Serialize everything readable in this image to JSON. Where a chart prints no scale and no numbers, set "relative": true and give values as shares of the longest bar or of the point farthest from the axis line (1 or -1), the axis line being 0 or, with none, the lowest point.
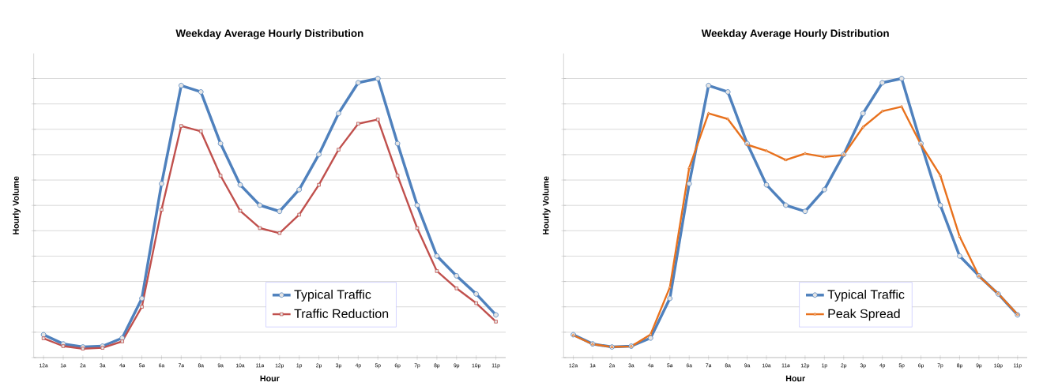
{
  "chart_data": [
    {
      "type": "line",
      "title": "Weekday Average Hourly Distribution",
      "xlabel": "Hour",
      "ylabel": "Hourly Volume",
      "relative": true,
      "grid": "y",
      "legend": "bottom",
      "line_style": "solid",
      "categories": [
        "12a",
        "1a",
        "2a",
        "3a",
        "4a",
        "5a",
        "6a",
        "7a",
        "8a",
        "9a",
        "10a",
        "11a",
        "12p",
        "1p",
        "2p",
        "3p",
        "4p",
        "5p",
        "6p",
        "7p",
        "8p",
        "9p",
        "10p",
        "11p"
      ],
      "series": [
        {
          "name": "Typical Traffic",
          "color": "#4f81bd",
          "marker": "circle",
          "values": [
            0.082,
            0.049,
            0.038,
            0.041,
            0.07,
            0.212,
            0.623,
            0.975,
            0.952,
            0.767,
            0.619,
            0.546,
            0.524,
            0.602,
            0.728,
            0.875,
            0.985,
            1,
            0.767,
            0.546,
            0.364,
            0.293,
            0.228,
            0.153
          ]
        },
        {
          "name": "Traffic Reduction",
          "color": "#c0504d",
          "marker": "square",
          "values": [
            0.069,
            0.041,
            0.032,
            0.035,
            0.058,
            0.182,
            0.53,
            0.83,
            0.811,
            0.652,
            0.526,
            0.464,
            0.446,
            0.512,
            0.619,
            0.745,
            0.838,
            0.853,
            0.652,
            0.464,
            0.31,
            0.248,
            0.195,
            0.129
          ]
        }
      ]
    },
    {
      "type": "line",
      "title": "Weekday Average Hourly Distribution",
      "xlabel": "Hour",
      "ylabel": "Hourly Volume",
      "relative": true,
      "grid": "y",
      "legend": "bottom",
      "line_style": "solid",
      "categories": [
        "12a",
        "1a",
        "2a",
        "3a",
        "4a",
        "5a",
        "6a",
        "7a",
        "8a",
        "9a",
        "10a",
        "11a",
        "12p",
        "1p",
        "2p",
        "3p",
        "4p",
        "5p",
        "6p",
        "7p",
        "8p",
        "9p",
        "10p",
        "11p"
      ],
      "series": [
        {
          "name": "Typical Traffic",
          "color": "#4f81bd",
          "marker": "circle",
          "values": [
            0.082,
            0.049,
            0.038,
            0.041,
            0.07,
            0.212,
            0.623,
            0.975,
            0.952,
            0.767,
            0.619,
            0.546,
            0.524,
            0.602,
            0.728,
            0.875,
            0.985,
            1,
            0.767,
            0.546,
            0.364,
            0.293,
            0.228,
            0.153
          ]
        },
        {
          "name": "Peak Spread",
          "color": "#e8711d",
          "marker": "triangle",
          "values": [
            0.08,
            0.048,
            0.038,
            0.04,
            0.083,
            0.252,
            0.68,
            0.875,
            0.855,
            0.763,
            0.741,
            0.708,
            0.731,
            0.719,
            0.726,
            0.826,
            0.883,
            0.899,
            0.763,
            0.653,
            0.434,
            0.292,
            0.229,
            0.155
          ]
        }
      ]
    }
  ]
}
